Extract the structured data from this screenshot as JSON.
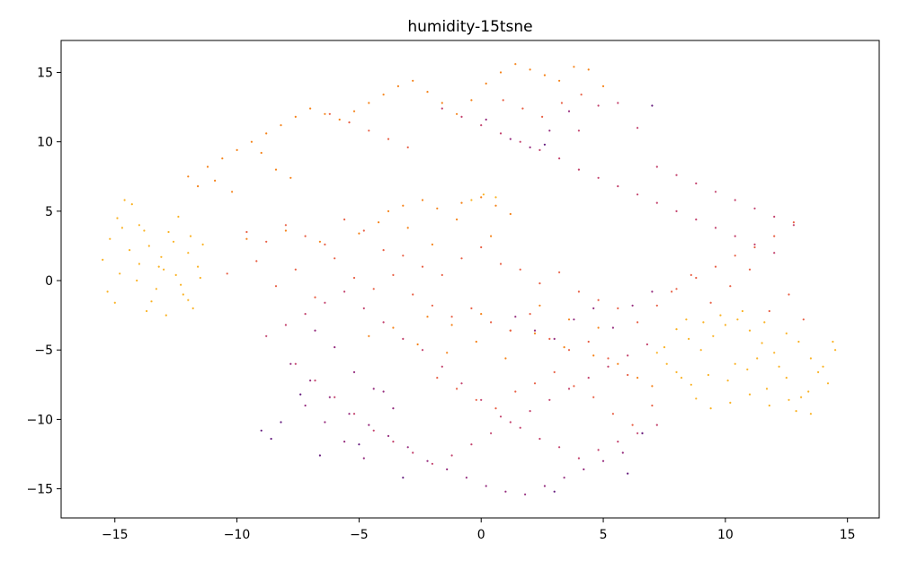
{
  "chart_data": {
    "type": "scatter",
    "title": "humidity-15tsne",
    "xlabel": "",
    "ylabel": "",
    "xlim": [
      -17.2,
      16.3
    ],
    "ylim": [
      -17.1,
      17.3
    ],
    "xticks": [
      -15,
      -10,
      -5,
      0,
      5,
      10,
      15
    ],
    "yticks": [
      -15,
      -10,
      -5,
      0,
      5,
      10,
      15
    ],
    "xtick_labels": [
      "−15",
      "−10",
      "−5",
      "0",
      "5",
      "10",
      "15"
    ],
    "ytick_labels": [
      "−15",
      "−10",
      "−5",
      "0",
      "5",
      "10",
      "15"
    ],
    "grid": false,
    "colormap": "inferno",
    "colormap_colors": [
      "#3b0f70",
      "#721f81",
      "#b73779",
      "#e85f44",
      "#f98e09",
      "#fbd63c"
    ],
    "series": [
      {
        "color_level": 0.9,
        "x": [
          -15.5,
          -15.2,
          -14.9,
          -14.6,
          -14.3,
          -14.0,
          -13.6,
          -13.2,
          -12.8,
          -12.4,
          -12.0,
          -11.6,
          -15.3,
          -14.8,
          -14.1,
          -13.5,
          -12.9,
          -12.2,
          -11.5,
          -15.0,
          -14.4,
          -13.8,
          -13.0,
          -12.3,
          -11.8,
          -14.7,
          -14.0,
          -13.3,
          -12.6,
          -11.9,
          -12.5,
          -11.4,
          -12.0,
          -13.7,
          -13.1,
          8.0,
          8.5,
          9.0,
          9.5,
          10.0,
          10.5,
          11.0,
          11.5,
          12.0,
          12.5,
          13.0,
          13.5,
          14.0,
          14.5,
          8.2,
          8.8,
          9.4,
          10.2,
          11.0,
          11.8,
          12.6,
          13.4,
          14.2,
          7.6,
          8.0,
          8.6,
          9.3,
          10.1,
          10.9,
          11.7,
          12.5,
          13.1,
          13.8,
          14.4,
          12.9,
          13.5,
          8.4,
          9.1,
          10.4,
          11.3,
          12.2,
          7.2,
          7.5,
          9.8,
          10.7,
          11.6,
          0.1,
          -0.4,
          0.6
        ],
        "y": [
          1.5,
          3.0,
          4.5,
          5.8,
          5.5,
          4.0,
          2.5,
          1.0,
          3.5,
          4.6,
          2.0,
          1.0,
          -0.8,
          0.5,
          0.0,
          -1.5,
          -2.5,
          -1.0,
          0.2,
          -1.6,
          2.2,
          3.6,
          0.8,
          -0.3,
          -2.0,
          3.8,
          1.2,
          -0.6,
          2.8,
          3.2,
          0.4,
          2.6,
          -1.4,
          -2.2,
          1.7,
          -3.5,
          -4.2,
          -5.0,
          -4.0,
          -3.2,
          -2.8,
          -3.6,
          -4.5,
          -5.2,
          -3.8,
          -4.4,
          -5.6,
          -6.2,
          -5.0,
          -7.0,
          -8.5,
          -9.2,
          -8.8,
          -8.2,
          -9.0,
          -8.6,
          -8.0,
          -7.4,
          -6.0,
          -6.6,
          -7.5,
          -6.8,
          -7.2,
          -6.4,
          -7.8,
          -7.0,
          -8.4,
          -6.6,
          -4.4,
          -9.4,
          -9.6,
          -2.8,
          -3.0,
          -6.0,
          -5.6,
          -6.2,
          -5.2,
          -4.8,
          -2.5,
          -2.2,
          -3.0,
          6.2,
          5.8,
          6.0
        ]
      },
      {
        "color_level": 0.75,
        "x": [
          -12.0,
          -11.2,
          -10.6,
          -10.0,
          -9.4,
          -8.8,
          -8.2,
          -7.6,
          -7.0,
          -6.4,
          -5.8,
          -5.2,
          -4.6,
          -4.0,
          -3.4,
          -2.8,
          -2.2,
          -1.6,
          -1.0,
          -0.4,
          0.2,
          0.8,
          1.4,
          2.0,
          2.6,
          3.2,
          3.8,
          4.4,
          5.0,
          -11.6,
          -10.9,
          -10.2,
          -9.0,
          -8.4,
          -7.8,
          -3.8,
          -3.2,
          -2.4,
          -1.8,
          -0.8,
          0.0,
          0.6,
          1.2,
          -9.6,
          -8.0,
          -6.6,
          -5.0,
          -4.2,
          -3.0,
          -2.0,
          -1.0,
          0.4,
          -4.6,
          -3.6,
          -2.6,
          -1.4,
          -0.2,
          1.0,
          2.2,
          3.4,
          4.6,
          5.6,
          6.4,
          7.0,
          -2.2,
          -1.2,
          0.0,
          1.2,
          2.4,
          3.6,
          4.8
        ],
        "y": [
          7.5,
          8.2,
          8.8,
          9.4,
          10.0,
          10.6,
          11.2,
          11.8,
          12.4,
          12.0,
          11.6,
          12.2,
          12.8,
          13.4,
          14.0,
          14.4,
          13.6,
          12.8,
          12.0,
          13.0,
          14.2,
          15.0,
          15.6,
          15.2,
          14.8,
          14.4,
          15.4,
          15.2,
          14.0,
          6.8,
          7.2,
          6.4,
          9.2,
          8.0,
          7.4,
          5.0,
          5.4,
          5.8,
          5.2,
          5.6,
          6.0,
          5.4,
          4.8,
          3.0,
          3.6,
          2.8,
          3.4,
          4.2,
          3.8,
          2.6,
          4.4,
          3.2,
          -4.0,
          -3.4,
          -4.6,
          -5.2,
          -4.4,
          -5.6,
          -3.8,
          -4.8,
          -5.4,
          -6.0,
          -7.0,
          -7.6,
          -2.6,
          -3.2,
          -2.4,
          -3.6,
          -1.8,
          -2.8,
          -3.4
        ]
      },
      {
        "color_level": 0.6,
        "x": [
          -9.6,
          -8.8,
          -8.0,
          -7.2,
          -6.4,
          -5.6,
          -4.8,
          -4.0,
          -3.2,
          -2.4,
          -1.6,
          -0.8,
          0.0,
          0.8,
          1.6,
          2.4,
          3.2,
          4.0,
          4.8,
          5.6,
          6.4,
          7.2,
          8.0,
          8.8,
          9.6,
          10.4,
          11.2,
          12.0,
          12.8,
          -10.4,
          -9.2,
          -8.4,
          -7.6,
          -6.8,
          -6.0,
          -5.2,
          -4.4,
          -3.6,
          -2.8,
          -2.0,
          -1.2,
          -0.4,
          0.4,
          1.2,
          2.0,
          2.8,
          3.6,
          4.4,
          5.2,
          6.0,
          -1.8,
          -1.0,
          -0.2,
          0.6,
          1.4,
          2.2,
          3.0,
          3.8,
          4.6,
          5.4,
          6.2,
          7.0,
          7.8,
          8.6,
          9.4,
          10.2,
          11.0,
          11.8,
          12.6,
          13.2,
          -6.2,
          -5.4,
          -4.6,
          -3.8,
          -3.0,
          0.9,
          1.7,
          2.5,
          3.3,
          4.1
        ],
        "y": [
          3.5,
          2.8,
          4.0,
          3.2,
          2.6,
          4.4,
          3.6,
          2.2,
          1.8,
          1.0,
          0.4,
          1.6,
          2.4,
          1.2,
          0.8,
          -0.2,
          0.6,
          -0.8,
          -1.4,
          -2.0,
          -3.0,
          -1.8,
          -0.6,
          0.2,
          1.0,
          1.8,
          2.4,
          3.2,
          4.2,
          0.5,
          1.4,
          -0.4,
          0.8,
          -1.2,
          1.6,
          0.2,
          -0.6,
          0.4,
          -1.0,
          -1.8,
          -2.6,
          -2.0,
          -3.0,
          -3.6,
          -2.4,
          -4.2,
          -5.0,
          -4.4,
          -5.6,
          -6.8,
          -7.0,
          -7.8,
          -8.6,
          -9.2,
          -8.0,
          -7.4,
          -6.6,
          -7.6,
          -8.4,
          -9.6,
          -10.4,
          -9.0,
          -0.8,
          0.4,
          -1.6,
          -0.4,
          0.8,
          -2.2,
          -1.0,
          -2.8,
          12.0,
          11.4,
          10.8,
          10.2,
          9.6,
          13.0,
          12.4,
          11.8,
          12.8,
          13.4
        ]
      },
      {
        "color_level": 0.45,
        "x": [
          -8.8,
          -8.0,
          -7.2,
          -6.4,
          -5.6,
          -4.8,
          -4.0,
          -3.2,
          -2.4,
          -1.6,
          -0.8,
          0.0,
          0.8,
          1.6,
          2.4,
          3.2,
          4.0,
          4.8,
          5.6,
          6.4,
          7.2,
          -7.6,
          -6.8,
          -6.0,
          -5.2,
          -4.4,
          -3.6,
          -2.8,
          -2.0,
          -1.2,
          -0.4,
          0.4,
          1.2,
          2.0,
          2.8,
          3.6,
          4.4,
          5.2,
          6.0,
          6.8,
          4.0,
          4.8,
          5.6,
          6.4,
          7.2,
          8.0,
          8.8,
          9.6,
          10.4,
          11.2,
          12.0,
          -1.6,
          -0.8,
          0.0,
          0.8,
          1.6,
          2.4,
          3.2,
          4.0,
          4.8,
          5.6,
          6.4,
          7.2,
          8.0,
          8.8,
          9.6,
          10.4,
          11.2,
          12.0,
          12.8
        ],
        "y": [
          -4.0,
          -3.2,
          -2.4,
          -1.6,
          -0.8,
          -2.0,
          -3.0,
          -4.2,
          -5.0,
          -6.2,
          -7.4,
          -8.6,
          -9.8,
          -10.6,
          -11.4,
          -12.0,
          -12.8,
          -12.2,
          -11.6,
          -11.0,
          -10.4,
          -6.0,
          -7.2,
          -8.4,
          -9.6,
          -10.8,
          -11.6,
          -12.4,
          -13.2,
          -12.6,
          -11.8,
          -11.0,
          -10.2,
          -9.4,
          -8.6,
          -7.8,
          -7.0,
          -6.2,
          -5.4,
          -4.6,
          8.0,
          7.4,
          6.8,
          6.2,
          5.6,
          5.0,
          4.4,
          3.8,
          3.2,
          2.6,
          2.0,
          12.4,
          11.8,
          11.2,
          10.6,
          10.0,
          9.4,
          8.8,
          10.8,
          12.6,
          12.8,
          11.0,
          8.2,
          7.6,
          7.0,
          6.4,
          5.8,
          5.2,
          4.6,
          4.0
        ]
      },
      {
        "color_level": 0.3,
        "x": [
          -7.8,
          -7.0,
          -6.2,
          -5.4,
          -4.6,
          -3.8,
          -3.0,
          -2.2,
          -1.4,
          -0.6,
          0.2,
          1.0,
          1.8,
          2.6,
          3.4,
          4.2,
          5.0,
          5.8,
          6.6,
          -7.2,
          -6.4,
          -5.6,
          -4.8,
          -4.0,
          -6.8,
          -6.0,
          -5.2,
          -4.4,
          -3.6,
          1.4,
          2.2,
          3.0,
          3.8,
          4.6,
          5.4,
          6.2,
          7.0,
          0.2,
          1.2,
          2.0,
          2.8,
          3.6
        ],
        "y": [
          -6.0,
          -7.2,
          -8.4,
          -9.6,
          -10.4,
          -11.2,
          -12.0,
          -13.0,
          -13.6,
          -14.2,
          -14.8,
          -15.2,
          -15.4,
          -14.8,
          -14.2,
          -13.6,
          -13.0,
          -12.4,
          -11.0,
          -9.0,
          -10.2,
          -11.6,
          -12.8,
          -8.0,
          -3.6,
          -4.8,
          -6.6,
          -7.8,
          -9.2,
          -2.6,
          -3.6,
          -4.2,
          -2.8,
          -2.0,
          -3.4,
          -1.8,
          -0.8,
          11.6,
          10.2,
          9.6,
          10.8,
          12.2
        ]
      },
      {
        "color_level": 0.15,
        "x": [
          -9.0,
          -8.6,
          -8.2,
          -7.4,
          -6.6,
          -5.0,
          -3.2,
          6.0,
          6.6,
          7.0,
          2.6,
          3.0
        ],
        "y": [
          -10.8,
          -11.4,
          -10.2,
          -8.2,
          -12.6,
          -11.8,
          -14.2,
          -13.9,
          -11.0,
          12.6,
          9.8,
          -15.2
        ]
      }
    ]
  }
}
